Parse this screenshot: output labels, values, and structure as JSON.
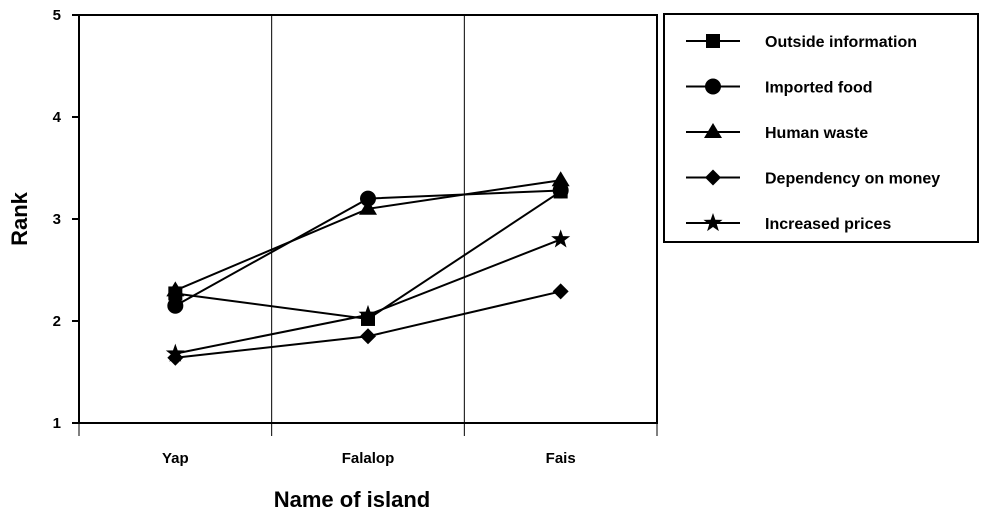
{
  "chart_data": {
    "type": "line",
    "title": "",
    "xlabel": "Name of island",
    "ylabel": "Rank",
    "categories": [
      "Yap",
      "Falalop",
      "Fais"
    ],
    "ylim": [
      1,
      5
    ],
    "yticks": [
      "1",
      "2",
      "3",
      "4",
      "5"
    ],
    "grid": "vertical category separators",
    "legend_position": "right",
    "series": [
      {
        "name": "Outside information",
        "marker": "square",
        "values": [
          2.27,
          2.02,
          3.27
        ]
      },
      {
        "name": "Imported food",
        "marker": "circle",
        "values": [
          2.15,
          3.2,
          3.28
        ]
      },
      {
        "name": "Human waste",
        "marker": "triangle",
        "values": [
          2.3,
          3.1,
          3.38
        ]
      },
      {
        "name": "Dependency on money",
        "marker": "diamond",
        "values": [
          1.64,
          1.85,
          2.29
        ]
      },
      {
        "name": "Increased prices",
        "marker": "star",
        "values": [
          1.68,
          2.06,
          2.8
        ]
      }
    ]
  }
}
